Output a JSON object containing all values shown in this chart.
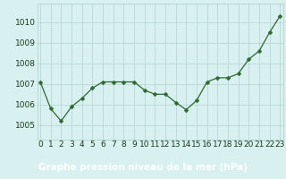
{
  "x": [
    0,
    1,
    2,
    3,
    4,
    5,
    6,
    7,
    8,
    9,
    10,
    11,
    12,
    13,
    14,
    15,
    16,
    17,
    18,
    19,
    20,
    21,
    22,
    23
  ],
  "y": [
    1007.1,
    1005.8,
    1005.2,
    1005.9,
    1006.3,
    1006.8,
    1007.1,
    1007.1,
    1007.1,
    1007.1,
    1006.7,
    1006.5,
    1006.5,
    1006.1,
    1005.75,
    1006.2,
    1007.1,
    1007.3,
    1007.3,
    1007.5,
    1008.2,
    1008.6,
    1009.5,
    1010.3
  ],
  "line_color": "#2d6a2d",
  "marker": "D",
  "marker_size": 2.5,
  "bg_color": "#d8f0f0",
  "footer_bg_color": "#4a8c5c",
  "grid_color": "#b8d8d8",
  "title": "Graphe pression niveau de la mer (hPa)",
  "tick_fontsize": 6.5,
  "title_fontsize": 7.5,
  "yticks": [
    1005,
    1006,
    1007,
    1008,
    1009,
    1010
  ],
  "ylim": [
    1004.3,
    1010.9
  ],
  "xlim": [
    -0.3,
    23.3
  ],
  "xticks": [
    0,
    1,
    2,
    3,
    4,
    5,
    6,
    7,
    8,
    9,
    10,
    11,
    12,
    13,
    14,
    15,
    16,
    17,
    18,
    19,
    20,
    21,
    22,
    23
  ]
}
